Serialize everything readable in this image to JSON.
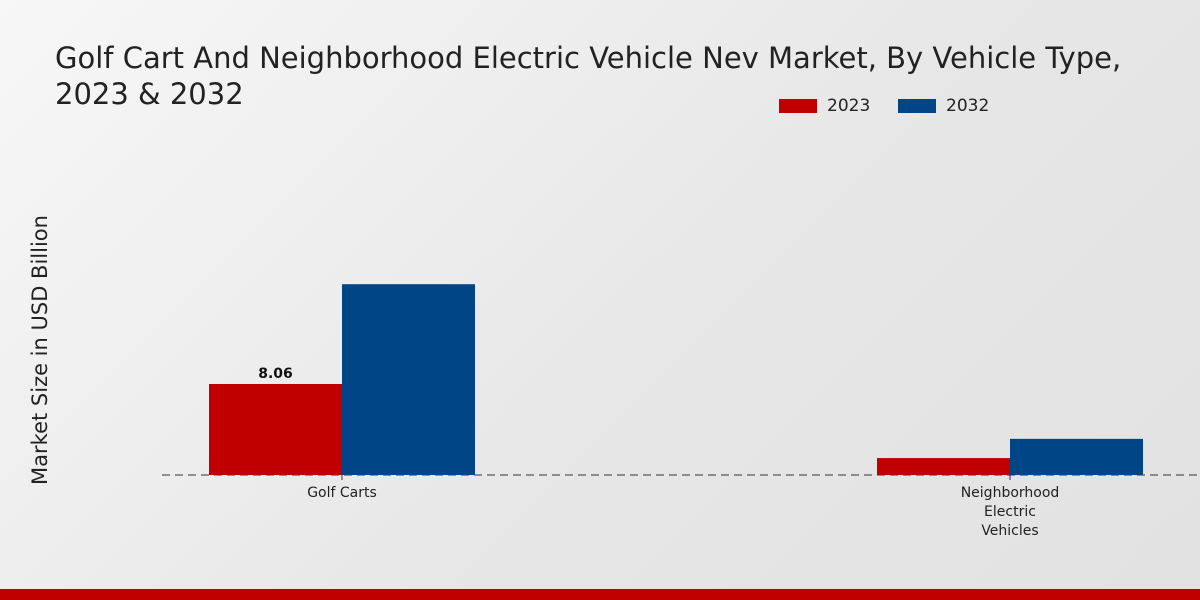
{
  "chart_data": {
    "type": "bar",
    "title": "Golf Cart And Neighborhood Electric Vehicle Nev Market, By Vehicle Type, 2023 & 2032",
    "xlabel": "",
    "ylabel": "Market Size in USD Billion",
    "categories": [
      "Golf Carts",
      "Neighborhood Electric Vehicles"
    ],
    "category_lines": [
      [
        "Golf Carts"
      ],
      [
        "Neighborhood",
        "Electric",
        "Vehicles"
      ]
    ],
    "series": [
      {
        "name": "2023",
        "color": "#c00000",
        "values": [
          8.06,
          1.5
        ],
        "labels": [
          "8.06",
          null
        ]
      },
      {
        "name": "2032",
        "color": "#004687",
        "values": [
          16.9,
          3.2
        ],
        "labels": [
          null,
          null
        ]
      }
    ],
    "ylim": [
      0,
      20
    ],
    "grid": false,
    "legend": "top-right"
  }
}
